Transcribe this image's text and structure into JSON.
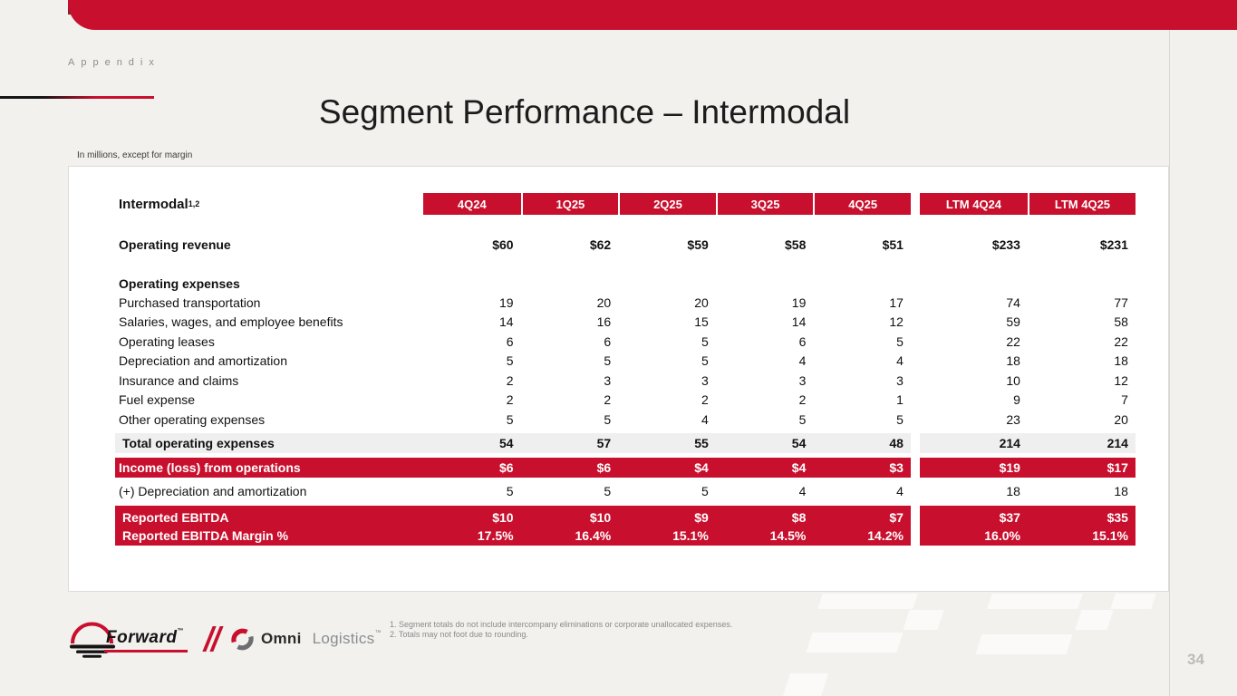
{
  "slide": {
    "eyebrow": "Appendix",
    "title": "Segment Performance – Intermodal",
    "units_note": "In millions, except for margin",
    "page_number": "34"
  },
  "table": {
    "row_header": {
      "label": "Intermodal",
      "superscript": "1,2"
    },
    "columns": [
      "4Q24",
      "1Q25",
      "2Q25",
      "3Q25",
      "4Q25"
    ],
    "ltm_columns": [
      "LTM 4Q24",
      "LTM 4Q25"
    ],
    "rows": [
      {
        "label": "Operating revenue",
        "style": "bold",
        "q": [
          "$60",
          "$62",
          "$59",
          "$58",
          "$51"
        ],
        "ltm": [
          "$233",
          "$231"
        ]
      },
      {
        "label": "Operating expenses",
        "style": "section",
        "q": [
          "",
          "",
          "",
          "",
          ""
        ],
        "ltm": [
          "",
          ""
        ]
      },
      {
        "label": "Purchased transportation",
        "style": "normal",
        "q": [
          "19",
          "20",
          "20",
          "19",
          "17"
        ],
        "ltm": [
          "74",
          "77"
        ]
      },
      {
        "label": "Salaries, wages, and employee benefits",
        "style": "normal",
        "q": [
          "14",
          "16",
          "15",
          "14",
          "12"
        ],
        "ltm": [
          "59",
          "58"
        ]
      },
      {
        "label": "Operating leases",
        "style": "normal",
        "q": [
          "6",
          "6",
          "5",
          "6",
          "5"
        ],
        "ltm": [
          "22",
          "22"
        ]
      },
      {
        "label": "Depreciation and amortization",
        "style": "normal",
        "q": [
          "5",
          "5",
          "5",
          "4",
          "4"
        ],
        "ltm": [
          "18",
          "18"
        ]
      },
      {
        "label": "Insurance and claims",
        "style": "normal",
        "q": [
          "2",
          "3",
          "3",
          "3",
          "3"
        ],
        "ltm": [
          "10",
          "12"
        ]
      },
      {
        "label": "Fuel expense",
        "style": "normal",
        "q": [
          "2",
          "2",
          "2",
          "2",
          "1"
        ],
        "ltm": [
          "9",
          "7"
        ]
      },
      {
        "label": "Other operating expenses",
        "style": "normal",
        "q": [
          "5",
          "5",
          "4",
          "5",
          "5"
        ],
        "ltm": [
          "23",
          "20"
        ]
      },
      {
        "label": "Total operating expenses",
        "style": "total",
        "q": [
          "54",
          "57",
          "55",
          "54",
          "48"
        ],
        "ltm": [
          "214",
          "214"
        ]
      },
      {
        "label": "Income (loss) from operations",
        "style": "red income",
        "q": [
          "$6",
          "$6",
          "$4",
          "$4",
          "$3"
        ],
        "ltm": [
          "$19",
          "$17"
        ]
      },
      {
        "label": "(+) Depreciation and amortization",
        "style": "plus",
        "q": [
          "5",
          "5",
          "5",
          "4",
          "4"
        ],
        "ltm": [
          "18",
          "18"
        ]
      },
      {
        "label": "Reported EBITDA",
        "style": "red ebitda1",
        "q": [
          "$10",
          "$10",
          "$9",
          "$8",
          "$7"
        ],
        "ltm": [
          "$37",
          "$35"
        ]
      },
      {
        "label": "Reported EBITDA Margin %",
        "style": "red ebitda2",
        "q": [
          "17.5%",
          "16.4%",
          "15.1%",
          "14.5%",
          "14.2%"
        ],
        "ltm": [
          "16.0%",
          "15.1%"
        ]
      }
    ]
  },
  "footer": {
    "footnotes": [
      "1.  Segment totals do not include intercompany eliminations or corporate unallocated expenses.",
      "2.  Totals may not foot due to rounding."
    ],
    "forward_wordmark": "Forward",
    "forward_mark": "™",
    "omni_wordmark_bold": "Omni",
    "omni_wordmark_light": "Logistics",
    "omni_mark": "™"
  },
  "colors": {
    "brand_red": "#C8102E",
    "dark_red": "#8C1D2B",
    "page_bg": "#F2F1EE",
    "band_gray": "#EFEFEF"
  }
}
